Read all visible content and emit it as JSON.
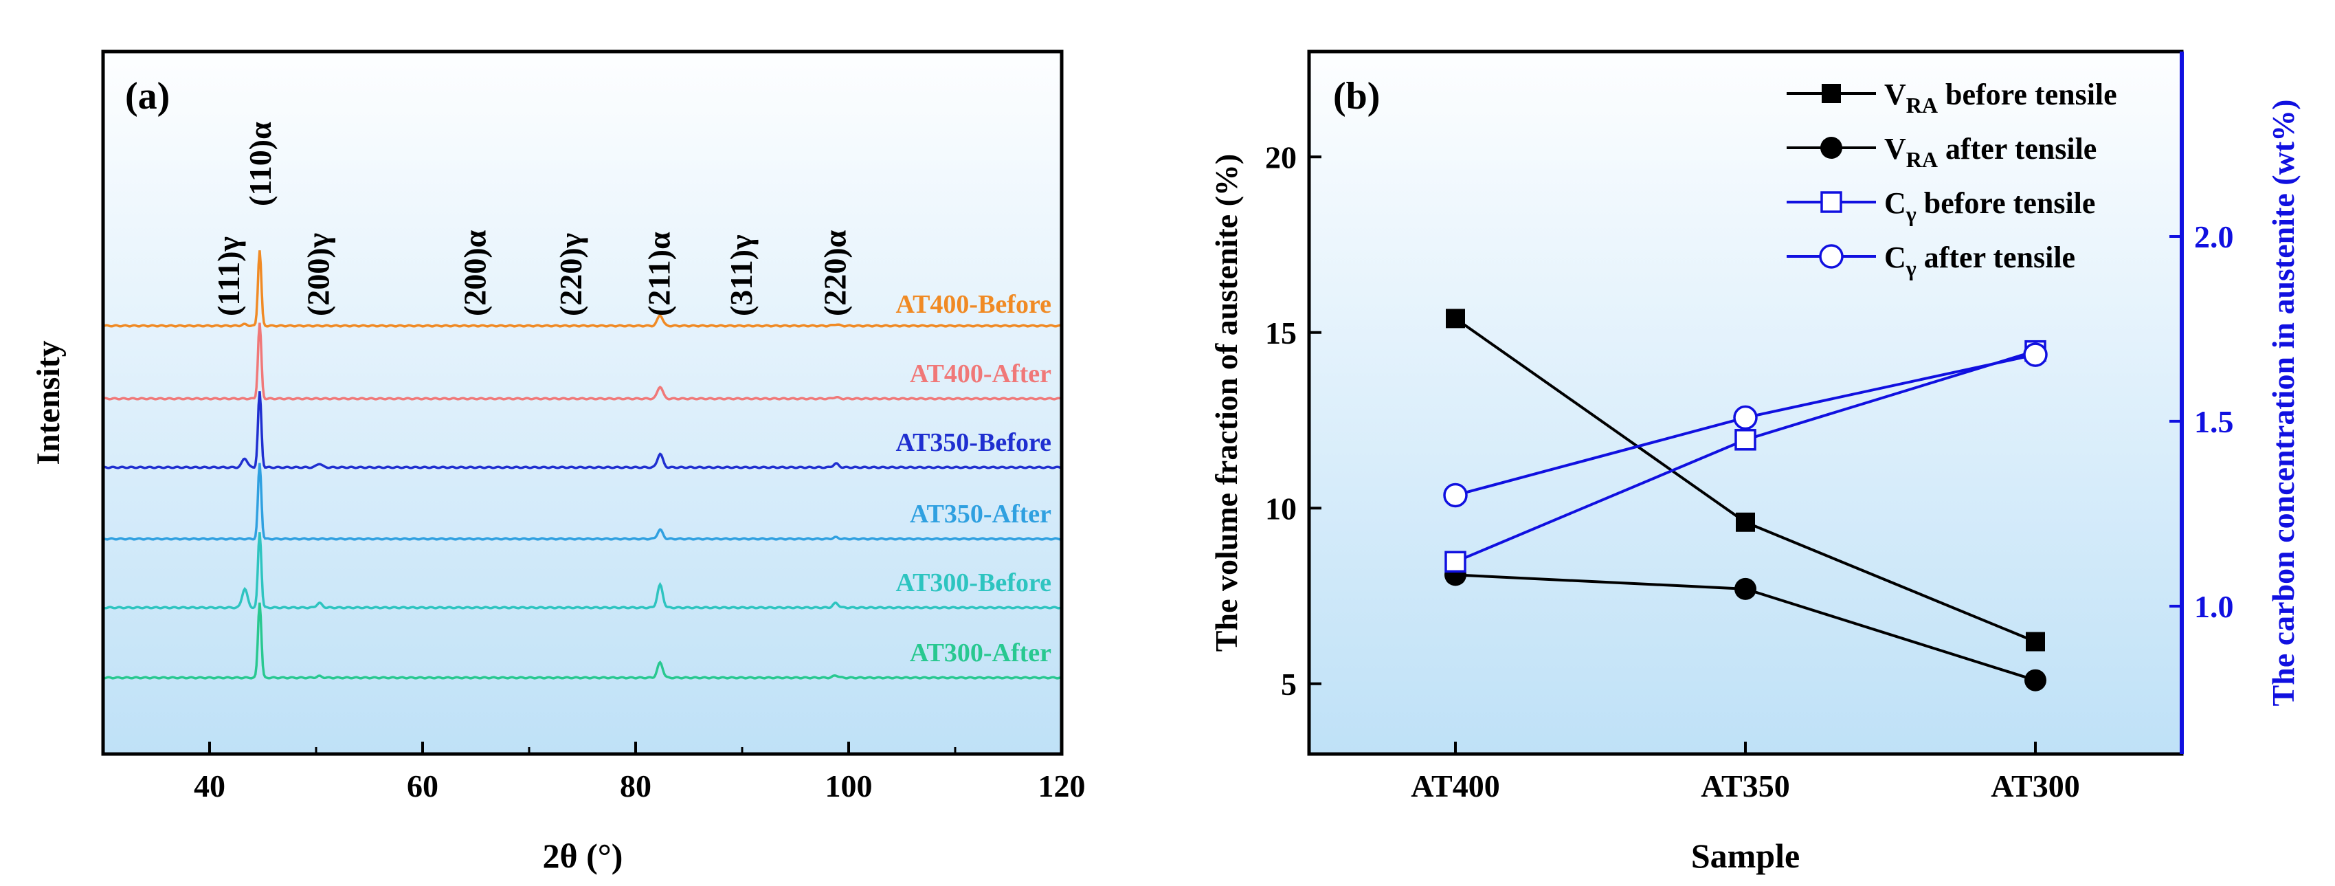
{
  "chart_data": [
    {
      "type": "line",
      "panel_label": "(a)",
      "xlabel": "2θ (°)",
      "ylabel": "Intensity",
      "xlim": [
        30,
        120
      ],
      "xticks": [
        "40",
        "60",
        "80",
        "100",
        "120"
      ],
      "peak_labels": [
        {
          "text": "(111)γ",
          "x": 43.3
        },
        {
          "text": "(110)α",
          "x": 44.7
        },
        {
          "text": "(200)γ",
          "x": 50.3
        },
        {
          "text": "(200)α",
          "x": 65.0
        },
        {
          "text": "(220)γ",
          "x": 74.0
        },
        {
          "text": "(211)α",
          "x": 82.3
        },
        {
          "text": "(311)γ",
          "x": 90.0
        },
        {
          "text": "(220)α",
          "x": 98.8
        }
      ],
      "series": [
        {
          "name": "AT400-Before",
          "color": "#f08a24",
          "main_peak": 1.0,
          "peaks": {
            "43.3": 0.02,
            "50.3": 0.0,
            "65.0": 0.1,
            "82.3": 0.14,
            "98.8": 0.02
          }
        },
        {
          "name": "AT400-After",
          "color": "#f07878",
          "main_peak": 1.0,
          "peaks": {
            "43.3": 0.0,
            "50.3": 0.0,
            "65.0": 0.12,
            "82.3": 0.16,
            "98.8": 0.02
          }
        },
        {
          "name": "AT350-Before",
          "color": "#1f2fd0",
          "main_peak": 1.0,
          "peaks": {
            "43.3": 0.12,
            "50.3": 0.05,
            "65.0": 0.16,
            "82.3": 0.18,
            "98.8": 0.05
          }
        },
        {
          "name": "AT350-After",
          "color": "#2fa0e0",
          "main_peak": 1.0,
          "peaks": {
            "43.3": 0.0,
            "50.3": 0.0,
            "65.0": 0.1,
            "82.3": 0.12,
            "98.8": 0.02
          }
        },
        {
          "name": "AT300-Before",
          "color": "#2ec4c0",
          "main_peak": 1.0,
          "peaks": {
            "43.3": 0.25,
            "50.3": 0.06,
            "65.0": 0.2,
            "82.3": 0.3,
            "98.8": 0.06
          }
        },
        {
          "name": "AT300-After",
          "color": "#28c890",
          "main_peak": 1.0,
          "peaks": {
            "43.3": 0.0,
            "50.3": 0.02,
            "65.0": 0.14,
            "82.3": 0.2,
            "98.8": 0.03
          }
        }
      ]
    },
    {
      "type": "line",
      "panel_label": "(b)",
      "xlabel": "Sample",
      "ylabel": "The volume fraction of austenite (%)",
      "ylabel_right": "The carbon concentration in austenite (wt%)",
      "categories": [
        "AT400",
        "AT350",
        "AT300"
      ],
      "ylim": [
        3,
        23
      ],
      "yticks": [
        "5",
        "10",
        "15",
        "20"
      ],
      "ylim_right": [
        0.6,
        2.5
      ],
      "yticks_right": [
        "1.0",
        "1.5",
        "2.0"
      ],
      "series": [
        {
          "name": "V_RA before tensile",
          "legend_main": "V",
          "legend_sub": "RA",
          "legend_rest": " before tensile",
          "axis": "left",
          "marker": "filled-square",
          "color": "#000000",
          "values": [
            15.4,
            9.6,
            6.2
          ]
        },
        {
          "name": "V_RA after tensile",
          "legend_main": "V",
          "legend_sub": "RA",
          "legend_rest": " after tensile",
          "axis": "left",
          "marker": "filled-circle",
          "color": "#000000",
          "values": [
            8.1,
            7.7,
            5.1
          ]
        },
        {
          "name": "Cγ before tensile",
          "legend_main": "C",
          "legend_sub": "γ",
          "legend_rest": " before tensile",
          "axis": "right",
          "marker": "open-square",
          "color": "#1010e0",
          "values": [
            1.12,
            1.45,
            1.69
          ]
        },
        {
          "name": "Cγ after tensile",
          "legend_main": "C",
          "legend_sub": "γ",
          "legend_rest": " after tensile",
          "axis": "right",
          "marker": "open-circle",
          "color": "#1010e0",
          "values": [
            1.3,
            1.51,
            1.68
          ]
        }
      ]
    }
  ]
}
